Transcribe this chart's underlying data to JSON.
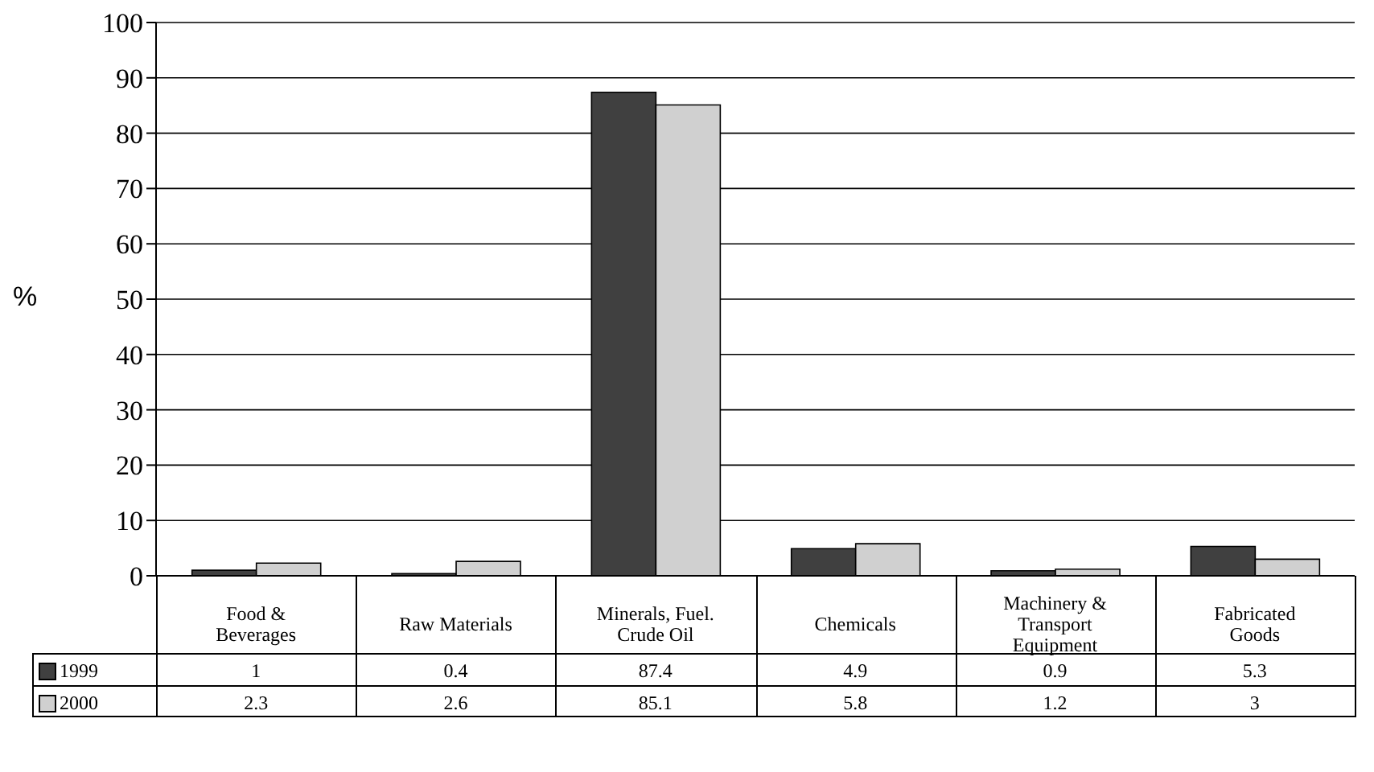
{
  "chart_data": {
    "type": "bar",
    "ylabel": "%",
    "categories": [
      "Food & Beverages",
      "Raw Materials",
      "Minerals, Fuel. Crude Oil",
      "Chemicals",
      "Machinery & Transport Equipment",
      "Fabricated Goods"
    ],
    "series": [
      {
        "name": "1999",
        "color": "#404040",
        "values": [
          1,
          0.4,
          87.4,
          4.9,
          0.9,
          5.3
        ]
      },
      {
        "name": "2000",
        "color": "#d0d0d0",
        "values": [
          2.3,
          2.6,
          85.1,
          5.8,
          1.2,
          3
        ]
      }
    ],
    "ylim": [
      0,
      100
    ],
    "yticks": [
      0,
      10,
      20,
      30,
      40,
      50,
      60,
      70,
      80,
      90,
      100
    ],
    "grid": "y",
    "legend": "bottom left",
    "data_labels": true
  }
}
